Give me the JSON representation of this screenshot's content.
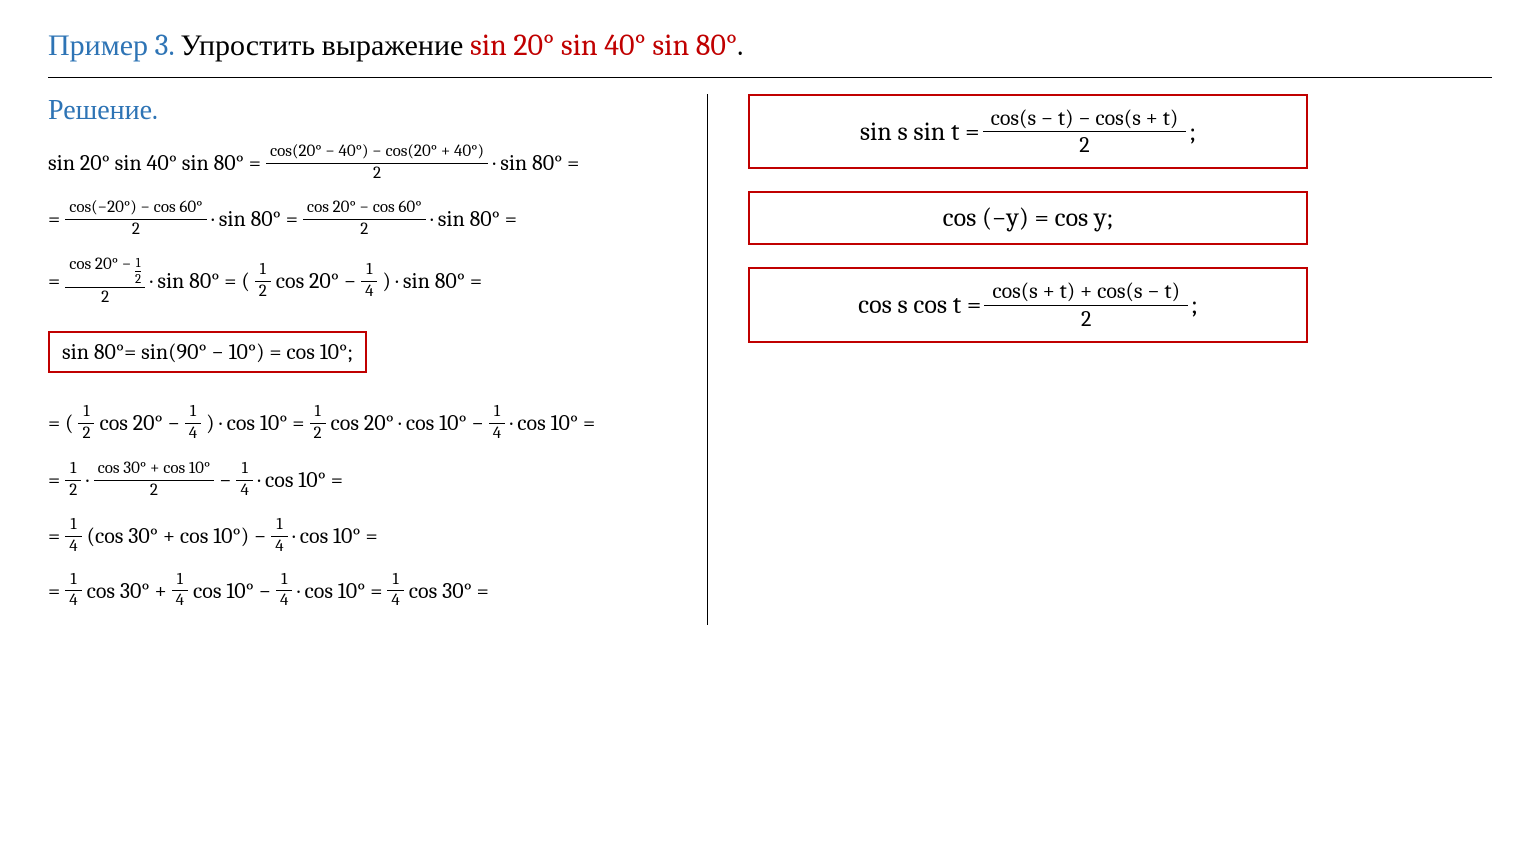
{
  "title": {
    "label": "Пример 3.",
    "text": " Упростить выражение ",
    "expr": "sin 20° sin 40° sin 80°",
    "period": "."
  },
  "solution_label": "Решение.",
  "left": {
    "l1_a": "sin 20° sin 40° sin 80° = ",
    "l1_frac_num": "cos(20° − 40°) − cos(20° + 40°)",
    "l1_frac_den": "2",
    "l1_b": " · sin 80° =",
    "l2_a": "= ",
    "l2_frac1_num": "cos(−20°) − cos 60°",
    "l2_frac1_den": "2",
    "l2_b": " · sin 80° =  ",
    "l2_frac2_num": "cos 20° − cos 60°",
    "l2_frac2_den": "2",
    "l2_c": " · sin 80° =",
    "l3_a": "= ",
    "l3_frac_num_pre": "cos 20° − ",
    "l3_mini_num": "1",
    "l3_mini_den": "2",
    "l3_frac_den": "2",
    "l3_b": " · sin 80° =  ( ",
    "l3_f1_num": "1",
    "l3_f1_den": "2",
    "l3_c": " cos 20° − ",
    "l3_f2_num": "1",
    "l3_f2_den": "4",
    "l3_d": " ) ·  sin 80° =",
    "boxed": "sin 80°= sin(90° − 10°) = cos 10°;",
    "l5_a": "= ( ",
    "l5_f1_num": "1",
    "l5_f1_den": "2",
    "l5_b": " cos 20° − ",
    "l5_f2_num": "1",
    "l5_f2_den": "4",
    "l5_c": " ) ·  cos 10° =   ",
    "l5_f3_num": "1",
    "l5_f3_den": "2",
    "l5_d": "  cos 20° ·  cos 10° − ",
    "l5_f4_num": "1",
    "l5_f4_den": "4",
    "l5_e": " ·  cos 10° =",
    "l6_a": "= ",
    "l6_f1_num": "1",
    "l6_f1_den": "2",
    "l6_b": " · ",
    "l6_frac_num": "cos  30° + cos  10°",
    "l6_frac_den": "2",
    "l6_c": " − ",
    "l6_f2_num": "1",
    "l6_f2_den": "4",
    "l6_d": " ·  cos 10° =",
    "l7_a": "= ",
    "l7_f1_num": "1",
    "l7_f1_den": "4",
    "l7_b": "  (cos 30° +  cos 10°) − ",
    "l7_f2_num": "1",
    "l7_f2_den": "4",
    "l7_c": " ·  cos 10° =",
    "l8_a": "= ",
    "l8_f1_num": "1",
    "l8_f1_den": "4",
    "l8_b": "  cos 30° + ",
    "l8_f2_num": "1",
    "l8_f2_den": "4",
    "l8_c": "  cos 10° − ",
    "l8_f3_num": "1",
    "l8_f3_den": "4",
    "l8_d": " ·  cos 10° = ",
    "l8_f4_num": "1",
    "l8_f4_den": "4",
    "l8_e": "  cos 30° ="
  },
  "right": {
    "f1_lhs": "sin s sin t = ",
    "f1_num": "cos(s − t) − cos(s + t)",
    "f1_den": "2",
    "f1_end": ";",
    "f2": "cos (−y) = cos y;",
    "f3_lhs": "cos s cos t =  ",
    "f3_num": "cos(s + t) + cos(s − t)",
    "f3_den": "2",
    "f3_end": ";"
  },
  "colors": {
    "accent_blue": "#2e74b5",
    "accent_red": "#c00000",
    "text": "#000000",
    "bg": "#ffffff"
  }
}
